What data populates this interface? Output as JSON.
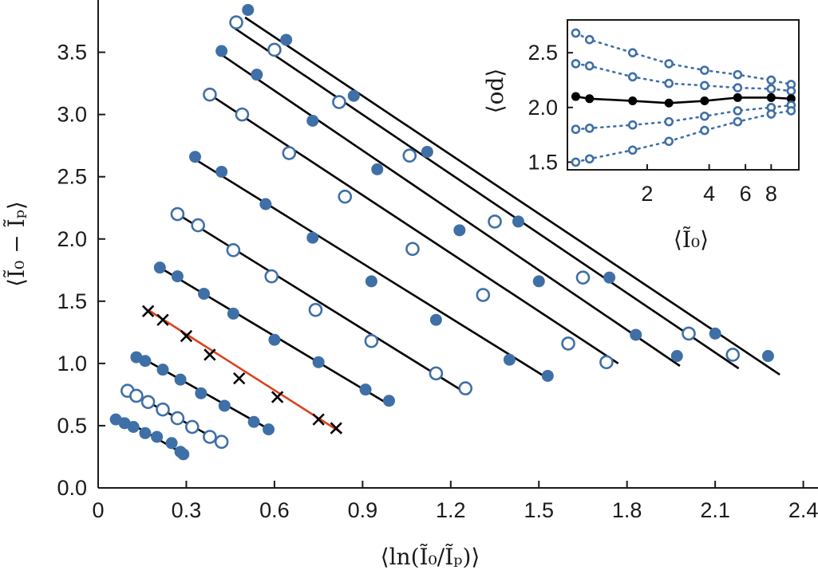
{
  "chart_data": [
    {
      "type": "scatter",
      "xlabel": "⟨ln(Ĩ₀/Ĩₚ)⟩",
      "ylabel": "⟨Ĩ₀ − Ĩₚ⟩",
      "xlim": [
        0,
        2.45
      ],
      "ylim": [
        0,
        3.92
      ],
      "xticks": [
        "0",
        "0.3",
        "0.6",
        "0.9",
        "1.2",
        "1.5",
        "1.8",
        "2.1",
        "2.4"
      ],
      "yticks": [
        "0.0",
        "0.5",
        "1.0",
        "1.5",
        "2.0",
        "2.5",
        "3.0",
        "3.5"
      ],
      "grid": false,
      "series": [
        {
          "style": "filled",
          "fit": [
            [
              0.08,
              0.56
            ],
            [
              0.3,
              0.26
            ]
          ],
          "x": [
            0.06,
            0.09,
            0.12,
            0.16,
            0.2,
            0.25,
            0.28,
            0.29
          ],
          "y": [
            0.55,
            0.52,
            0.49,
            0.44,
            0.41,
            0.36,
            0.29,
            0.27
          ]
        },
        {
          "style": "open",
          "fit": [
            [
              0.1,
              0.78
            ],
            [
              0.41,
              0.38
            ]
          ],
          "x": [
            0.1,
            0.13,
            0.17,
            0.22,
            0.27,
            0.32,
            0.38,
            0.42
          ],
          "y": [
            0.78,
            0.74,
            0.69,
            0.63,
            0.56,
            0.49,
            0.41,
            0.37
          ]
        },
        {
          "style": "filled",
          "fit": [
            [
              0.13,
              1.07
            ],
            [
              0.59,
              0.46
            ]
          ],
          "x": [
            0.13,
            0.16,
            0.22,
            0.28,
            0.35,
            0.43,
            0.53,
            0.58
          ],
          "y": [
            1.05,
            1.02,
            0.95,
            0.87,
            0.76,
            0.66,
            0.53,
            0.47
          ]
        },
        {
          "style": "cross",
          "color": "#d9431e",
          "fit": [
            [
              0.17,
              1.43
            ],
            [
              0.83,
              0.44
            ]
          ],
          "x": [
            0.17,
            0.22,
            0.3,
            0.38,
            0.48,
            0.61,
            0.75,
            0.81
          ],
          "y": [
            1.42,
            1.35,
            1.22,
            1.07,
            0.88,
            0.73,
            0.55,
            0.48
          ]
        },
        {
          "style": "filled",
          "fit": [
            [
              0.21,
              1.77
            ],
            [
              0.99,
              0.67
            ]
          ],
          "x": [
            0.21,
            0.27,
            0.36,
            0.46,
            0.6,
            0.75,
            0.91,
            0.99
          ],
          "y": [
            1.77,
            1.7,
            1.56,
            1.4,
            1.19,
            1.01,
            0.79,
            0.7
          ]
        },
        {
          "style": "open",
          "fit": [
            [
              0.27,
              2.2
            ],
            [
              1.26,
              0.75
            ]
          ],
          "x": [
            0.27,
            0.34,
            0.46,
            0.59,
            0.74,
            0.93,
            1.15,
            1.25
          ],
          "y": [
            2.2,
            2.11,
            1.91,
            1.7,
            1.43,
            1.18,
            0.92,
            0.8
          ]
        },
        {
          "style": "filled",
          "fit": [
            [
              0.33,
              2.64
            ],
            [
              1.53,
              0.88
            ]
          ],
          "x": [
            0.33,
            0.42,
            0.57,
            0.73,
            0.93,
            1.15,
            1.4,
            1.53
          ],
          "y": [
            2.66,
            2.54,
            2.28,
            2.01,
            1.66,
            1.35,
            1.03,
            0.9
          ]
        },
        {
          "style": "open",
          "fit": [
            [
              0.38,
              3.16
            ],
            [
              1.77,
              1.0
            ]
          ],
          "x": [
            0.38,
            0.49,
            0.65,
            0.84,
            1.07,
            1.31,
            1.6,
            1.73
          ],
          "y": [
            3.16,
            3.0,
            2.69,
            2.34,
            1.92,
            1.55,
            1.16,
            1.01
          ]
        },
        {
          "style": "filled",
          "fit": [
            [
              0.42,
              3.48
            ],
            [
              1.98,
              0.98
            ]
          ],
          "x": [
            0.42,
            0.54,
            0.73,
            0.95,
            1.23,
            1.5,
            1.83,
            1.97
          ],
          "y": [
            3.51,
            3.32,
            2.95,
            2.56,
            2.07,
            1.66,
            1.23,
            1.06
          ]
        },
        {
          "style": "open",
          "fit": [
            [
              0.46,
              3.7
            ],
            [
              2.18,
              0.96
            ]
          ],
          "x": [
            0.47,
            0.6,
            0.82,
            1.06,
            1.35,
            1.65,
            2.01,
            2.16
          ],
          "y": [
            3.74,
            3.52,
            3.1,
            2.67,
            2.14,
            1.69,
            1.24,
            1.07
          ]
        },
        {
          "style": "filled",
          "fit": [
            [
              0.5,
              3.78
            ],
            [
              2.32,
              0.91
            ]
          ],
          "x": [
            0.51,
            0.64,
            0.87,
            1.12,
            1.43,
            1.74,
            2.1,
            2.28
          ],
          "y": [
            3.84,
            3.6,
            3.15,
            2.7,
            2.14,
            1.69,
            1.24,
            1.06
          ]
        }
      ]
    },
    {
      "type": "line",
      "xlabel": "⟨Ĩ₀⟩",
      "ylabel": "⟨od⟩",
      "xscale": "log",
      "xlim": [
        0.82,
        10.9
      ],
      "ylim": [
        1.43,
        2.8
      ],
      "xticks": [
        "2",
        "4",
        "6",
        "8"
      ],
      "yticks": [
        "1.5",
        "2.0",
        "2.5"
      ],
      "grid": false,
      "x": [
        0.9,
        1.05,
        1.7,
        2.55,
        3.8,
        5.5,
        8.0,
        10.0
      ],
      "series": [
        {
          "style": "dotted-open",
          "y": [
            2.68,
            2.62,
            2.5,
            2.4,
            2.34,
            2.3,
            2.25,
            2.21
          ]
        },
        {
          "style": "dotted-open",
          "y": [
            2.4,
            2.38,
            2.28,
            2.22,
            2.2,
            2.18,
            2.17,
            2.15
          ]
        },
        {
          "style": "solid-filled",
          "y": [
            2.1,
            2.08,
            2.06,
            2.04,
            2.06,
            2.09,
            2.09,
            2.08
          ]
        },
        {
          "style": "dotted-open",
          "y": [
            1.8,
            1.81,
            1.84,
            1.87,
            1.92,
            1.97,
            2.0,
            2.02
          ]
        },
        {
          "style": "dotted-open",
          "y": [
            1.5,
            1.53,
            1.61,
            1.69,
            1.79,
            1.87,
            1.94,
            1.97
          ]
        }
      ]
    }
  ],
  "colors": {
    "marker": "#3f6fa7",
    "fit_line": "#000000",
    "highlight_fit": "#d9431e",
    "cross": "#000000",
    "axis": "#1a1a1a"
  }
}
